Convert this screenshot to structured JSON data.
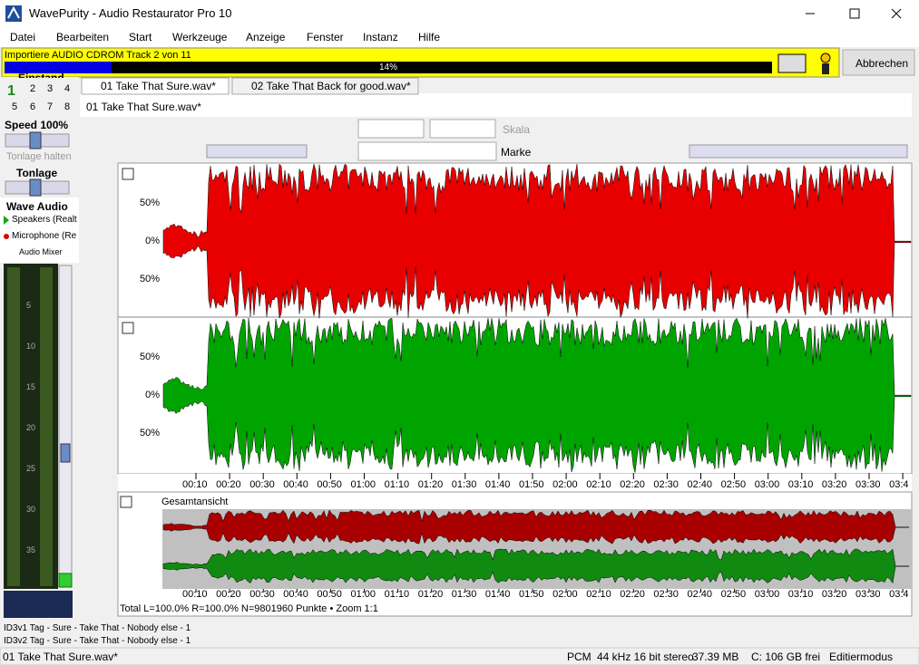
{
  "window": {
    "title": "WavePurity - Audio Restaurator Pro 10"
  },
  "menu": [
    "Datei",
    "Bearbeiten",
    "Start",
    "Werkzeuge",
    "Anzeige",
    "Fenster",
    "Instanz",
    "Hilfe"
  ],
  "progress": {
    "text": "Importiere AUDIO CDROM Track 2 von 11",
    "percent": "14%",
    "cancel": "Abbrechen"
  },
  "left_panel": {
    "heading": "Einstand",
    "presets": [
      "1",
      "2",
      "3",
      "4",
      "5",
      "6",
      "7",
      "8"
    ],
    "speed": "Speed 100%",
    "pitch_hold": "Tonlage halten",
    "pitch": "Tonlage",
    "device_title": "Wave Audio",
    "devices": [
      "Speakers (Realt",
      "Microphone (Re"
    ],
    "mixer": "Audio Mixer",
    "meter_labels": [
      "5",
      "10",
      "15",
      "20",
      "25",
      "30",
      "35"
    ]
  },
  "tabs": [
    "01 Take That Sure.wav*",
    "02 Take That Back for good.wav*"
  ],
  "file_label": "01 Take That Sure.wav*",
  "toolbar": {
    "scale": "Skala",
    "marker": "Marke"
  },
  "channels": [
    {
      "labels": [
        "50%",
        "0%",
        "50%"
      ]
    },
    {
      "labels": [
        "50%",
        "0%",
        "50%"
      ]
    }
  ],
  "time_labels": [
    "00:10",
    "00:20",
    "00:30",
    "00:40",
    "00:50",
    "01:00",
    "01:10",
    "01:20",
    "01:30",
    "01:40",
    "01:50",
    "02:00",
    "02:10",
    "02:20",
    "02:30",
    "02:40",
    "02:50",
    "03:00",
    "03:10",
    "03:20",
    "03:30",
    "03:4"
  ],
  "overview": {
    "title": "Gesamtansicht"
  },
  "summary": "Total L=100.0% R=100.0% N=9801960 Punkte • Zoom 1:1",
  "id3": [
    "ID3v1 Tag - Sure - Take That - Nobody else - 1",
    "ID3v2 Tag - Sure - Take That - Nobody else - 1"
  ],
  "statusbar": [
    "01 Take That Sure.wav*",
    "PCM",
    "44 kHz 16 bit stereo",
    "37.39 MB",
    "C: 106 GB frei",
    "Editiermodus"
  ]
}
